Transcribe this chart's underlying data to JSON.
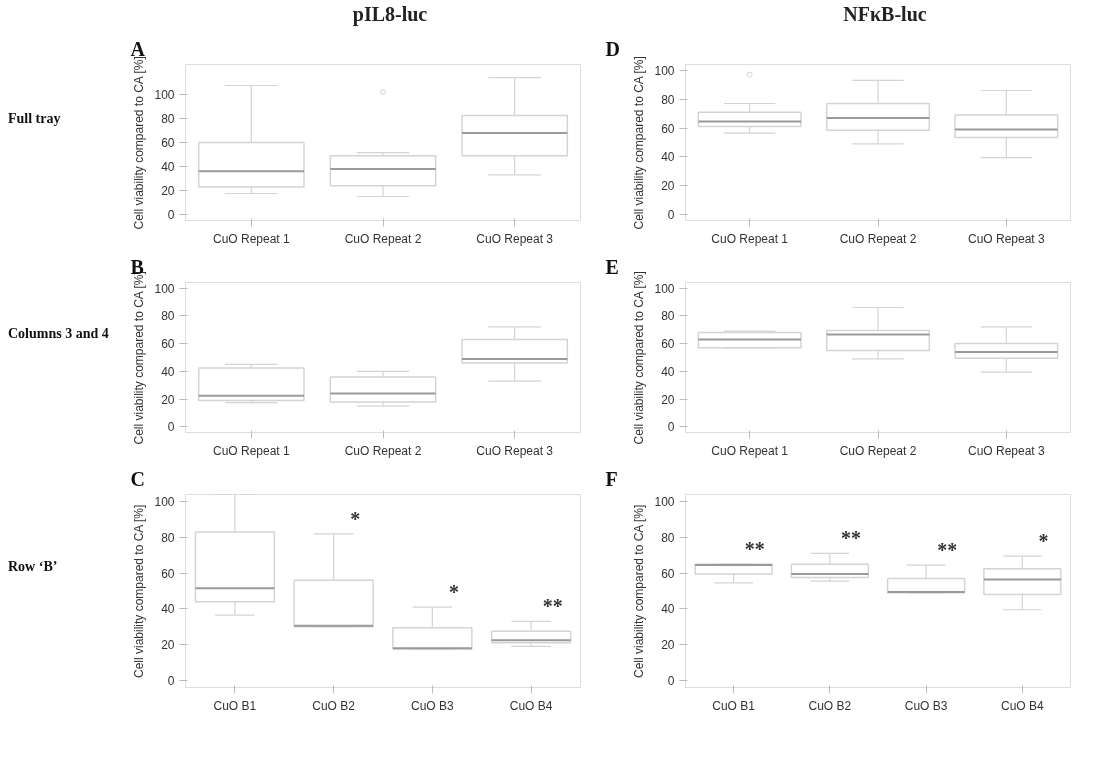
{
  "chart_data": [
    {
      "type": "box",
      "title": "pIL8-luc",
      "ylabel": "Cell viability compared to CA [%]",
      "categories": [
        "CuO Repeat 1",
        "CuO Repeat 2",
        "CuO Repeat 3"
      ],
      "ylim": [
        -5,
        125
      ],
      "yticks": [
        0,
        20,
        40,
        60,
        80,
        100
      ],
      "color": "#d4d4d4",
      "boxes": [
        {
          "low": 17.5,
          "q1": 23,
          "median": 36,
          "q3": 60,
          "high": 107.5
        },
        {
          "low": 15,
          "q1": 24,
          "median": 38,
          "q3": 49,
          "high": 51.5,
          "outliers": [
            102
          ]
        },
        {
          "low": 33,
          "q1": 49,
          "median": 68,
          "q3": 82.5,
          "high": 114
        }
      ],
      "annotations": [
        "A",
        "Full tray"
      ]
    },
    {
      "type": "box",
      "title": "NFκB-luc",
      "ylabel": "Cell viability compared to CA [%]",
      "categories": [
        "CuO Repeat 1",
        "CuO Repeat 2",
        "CuO Repeat 3"
      ],
      "ylim": [
        -4,
        104
      ],
      "yticks": [
        0,
        20,
        40,
        60,
        80,
        100
      ],
      "color": "#d4d4d4",
      "boxes": [
        {
          "low": 56.5,
          "q1": 61,
          "median": 64.5,
          "q3": 71,
          "high": 77,
          "outliers": [
            97
          ]
        },
        {
          "low": 49,
          "q1": 58.5,
          "median": 67,
          "q3": 77,
          "high": 93
        },
        {
          "low": 39.5,
          "q1": 53.5,
          "median": 59,
          "q3": 69,
          "high": 86
        }
      ],
      "annotations": [
        "D"
      ]
    },
    {
      "type": "box",
      "ylabel": "Cell viability compared to CA [%]",
      "categories": [
        "CuO Repeat 1",
        "CuO Repeat 2",
        "CuO Repeat 3"
      ],
      "ylim": [
        -4,
        104
      ],
      "yticks": [
        0,
        20,
        40,
        60,
        80,
        100
      ],
      "color": "#d4d4d4",
      "boxes": [
        {
          "low": 17.5,
          "q1": 19,
          "median": 22.5,
          "q3": 42.5,
          "high": 45
        },
        {
          "low": 15,
          "q1": 18,
          "median": 24,
          "q3": 36,
          "high": 40
        },
        {
          "low": 33,
          "q1": 46,
          "median": 49,
          "q3": 63,
          "high": 72
        }
      ],
      "annotations": [
        "B",
        "Columns 3 and 4"
      ]
    },
    {
      "type": "box",
      "ylabel": "Cell viability compared to CA [%]",
      "categories": [
        "CuO Repeat 1",
        "CuO Repeat 2",
        "CuO Repeat 3"
      ],
      "ylim": [
        -4,
        104
      ],
      "yticks": [
        0,
        20,
        40,
        60,
        80,
        100
      ],
      "color": "#d4d4d4",
      "boxes": [
        {
          "low": 57,
          "q1": 57,
          "median": 63,
          "q3": 68,
          "high": 69
        },
        {
          "low": 49,
          "q1": 55,
          "median": 66.5,
          "q3": 69.5,
          "high": 86
        },
        {
          "low": 39.5,
          "q1": 49.5,
          "median": 54,
          "q3": 60,
          "high": 72
        }
      ],
      "annotations": [
        "E"
      ]
    },
    {
      "type": "box",
      "ylabel": "Cell viability compared to CA [%]",
      "categories": [
        "CuO B1",
        "CuO B2",
        "CuO B3",
        "CuO B4"
      ],
      "ylim": [
        -4,
        104
      ],
      "yticks": [
        0,
        20,
        40,
        60,
        80,
        100
      ],
      "color": "#d4d4d4",
      "boxes": [
        {
          "low": 36.5,
          "q1": 44,
          "median": 51.5,
          "q3": 83,
          "high": 104
        },
        {
          "low": 30,
          "q1": 30,
          "median": 30.5,
          "q3": 56,
          "high": 82
        },
        {
          "low": 17.5,
          "q1": 17.5,
          "median": 18,
          "q3": 29.5,
          "high": 41
        },
        {
          "low": 19,
          "q1": 21,
          "median": 22.5,
          "q3": 27.5,
          "high": 33
        }
      ],
      "annotations": [
        "C",
        "Row ‘B’",
        "*",
        "*",
        "**"
      ]
    },
    {
      "type": "box",
      "ylabel": "Cell viability compared to CA [%]",
      "categories": [
        "CuO B1",
        "CuO B2",
        "CuO B3",
        "CuO B4"
      ],
      "ylim": [
        -4,
        104
      ],
      "yticks": [
        0,
        20,
        40,
        60,
        80,
        100
      ],
      "color": "#d4d4d4",
      "boxes": [
        {
          "low": 54.5,
          "q1": 59.5,
          "median": 64.5,
          "q3": 65,
          "high": 65
        },
        {
          "low": 55.5,
          "q1": 57.5,
          "median": 59.5,
          "q3": 65,
          "high": 71
        },
        {
          "low": 49,
          "q1": 49,
          "median": 49.5,
          "q3": 57,
          "high": 64.5
        },
        {
          "low": 39.5,
          "q1": 48,
          "median": 56.5,
          "q3": 62.5,
          "high": 69.5
        }
      ],
      "annotations": [
        "F",
        "**",
        "**",
        "**",
        "*"
      ]
    }
  ]
}
